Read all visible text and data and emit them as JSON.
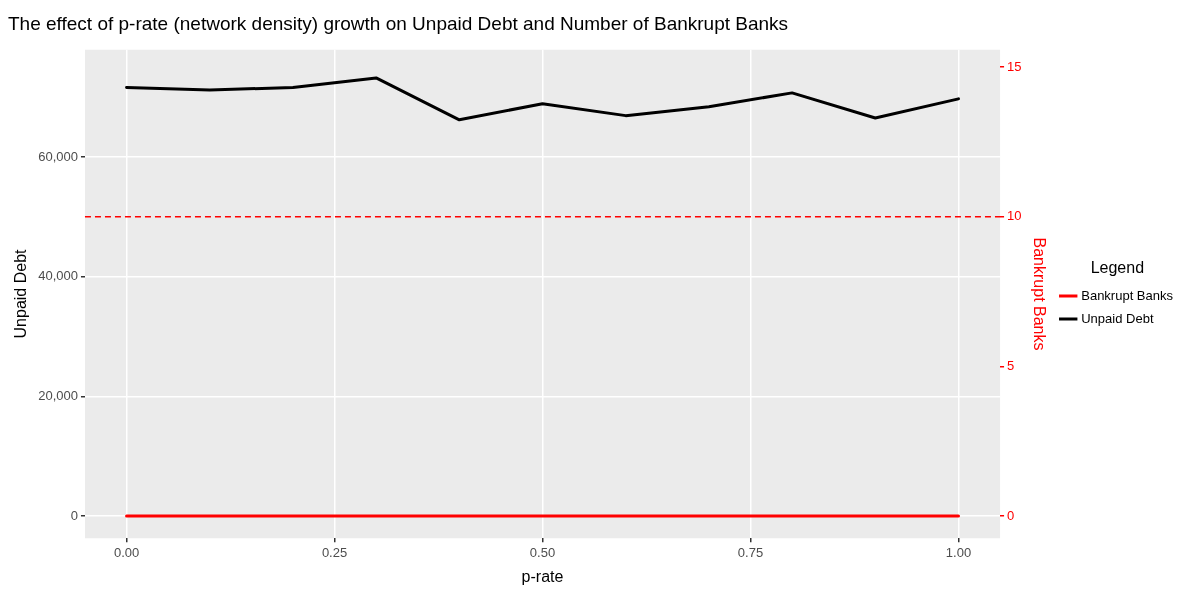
{
  "chart_data": {
    "type": "line",
    "title": "The effect of p-rate (network density) growth on Unpaid Debt and Number of Bankrupt Banks",
    "xlabel": "p-rate",
    "ylabel": "Unpaid Debt",
    "y2label": "Bankrupt Banks",
    "legend_title": "Legend",
    "legend": "right",
    "grid": true,
    "marker": "none",
    "line_style": "solid",
    "x": [
      0,
      0.1,
      0.2,
      0.3,
      0.4,
      0.5,
      0.6,
      0.7,
      0.8,
      0.9,
      1
    ],
    "series": [
      {
        "name": "Bankrupt Banks",
        "color": "#ff0000",
        "axis": "y2",
        "values": [
          0,
          0,
          0,
          0,
          0,
          0,
          0,
          0,
          0,
          0,
          0
        ]
      },
      {
        "name": "Unpaid Debt",
        "color": "#000000",
        "values": [
          71600,
          71200,
          71600,
          73200,
          66200,
          68900,
          66900,
          68400,
          70700,
          66500,
          69700
        ]
      }
    ],
    "xlim": [
      -0.05,
      1.05
    ],
    "xticks": [
      {
        "value": 0,
        "label": "0.00"
      },
      {
        "value": 0.25,
        "label": "0.25"
      },
      {
        "value": 0.5,
        "label": "0.50"
      },
      {
        "value": 0.75,
        "label": "0.75"
      },
      {
        "value": 1,
        "label": "1.00"
      }
    ],
    "ylim": [
      -3700,
      77900
    ],
    "yticks": [
      0,
      {
        "value": 20000,
        "label": "20,000"
      },
      {
        "value": 40000,
        "label": "40,000"
      },
      {
        "value": 60000,
        "label": "60,000"
      }
    ],
    "y2lim": [
      -0.74,
      15.58
    ],
    "y2ticks": [
      0,
      5,
      10,
      15
    ],
    "ref_lines": [
      {
        "axis": "y2",
        "value": 10,
        "color": "#ff0000",
        "line_style": "dashed"
      }
    ]
  }
}
